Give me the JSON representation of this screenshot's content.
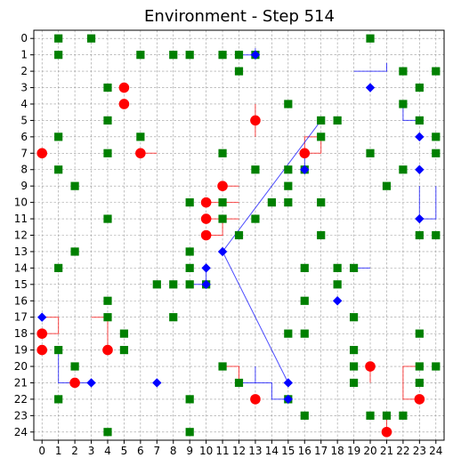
{
  "title": "Environment - Step 514",
  "grid": {
    "cols": 25,
    "rows": 25,
    "x_ticks": [
      "0",
      "1",
      "2",
      "3",
      "4",
      "5",
      "6",
      "7",
      "8",
      "9",
      "10",
      "11",
      "12",
      "13",
      "14",
      "15",
      "16",
      "17",
      "18",
      "19",
      "20",
      "21",
      "22",
      "23",
      "24"
    ],
    "y_ticks": [
      "0",
      "1",
      "2",
      "3",
      "4",
      "5",
      "6",
      "7",
      "8",
      "9",
      "10",
      "11",
      "12",
      "13",
      "14",
      "15",
      "16",
      "17",
      "18",
      "19",
      "20",
      "21",
      "22",
      "23",
      "24"
    ],
    "y_axis_inverted": true,
    "grid_lines": "dashed"
  },
  "colors": {
    "resource": "#008000",
    "agent_red": "#ff0000",
    "agent_blue": "#0000ff",
    "trail_red": "#ff0000",
    "trail_blue": "#0000ff"
  },
  "chart_data": {
    "type": "scatter",
    "title": "Environment - Step 514",
    "xlim": [
      -0.5,
      24.5
    ],
    "ylim": [
      24.5,
      -0.5
    ],
    "series": [
      {
        "kind": "resources",
        "marker": "square",
        "color": "#008000",
        "points": [
          [
            1,
            0
          ],
          [
            3,
            0
          ],
          [
            20,
            0
          ],
          [
            1,
            1
          ],
          [
            6,
            1
          ],
          [
            8,
            1
          ],
          [
            9,
            1
          ],
          [
            11,
            1
          ],
          [
            12,
            1
          ],
          [
            13,
            1
          ],
          [
            12,
            2
          ],
          [
            22,
            2
          ],
          [
            24,
            2
          ],
          [
            4,
            3
          ],
          [
            23,
            3
          ],
          [
            15,
            4
          ],
          [
            22,
            4
          ],
          [
            4,
            5
          ],
          [
            17,
            5
          ],
          [
            18,
            5
          ],
          [
            23,
            5
          ],
          [
            1,
            6
          ],
          [
            6,
            6
          ],
          [
            17,
            6
          ],
          [
            24,
            6
          ],
          [
            4,
            7
          ],
          [
            11,
            7
          ],
          [
            20,
            7
          ],
          [
            24,
            7
          ],
          [
            1,
            8
          ],
          [
            13,
            8
          ],
          [
            15,
            8
          ],
          [
            16,
            8
          ],
          [
            22,
            8
          ],
          [
            2,
            9
          ],
          [
            15,
            9
          ],
          [
            21,
            9
          ],
          [
            9,
            10
          ],
          [
            11,
            10
          ],
          [
            14,
            10
          ],
          [
            15,
            10
          ],
          [
            17,
            10
          ],
          [
            4,
            11
          ],
          [
            11,
            11
          ],
          [
            13,
            11
          ],
          [
            12,
            12
          ],
          [
            17,
            12
          ],
          [
            23,
            12
          ],
          [
            24,
            12
          ],
          [
            2,
            13
          ],
          [
            9,
            13
          ],
          [
            1,
            14
          ],
          [
            9,
            14
          ],
          [
            16,
            14
          ],
          [
            18,
            14
          ],
          [
            19,
            14
          ],
          [
            7,
            15
          ],
          [
            8,
            15
          ],
          [
            9,
            15
          ],
          [
            10,
            15
          ],
          [
            18,
            15
          ],
          [
            4,
            16
          ],
          [
            16,
            16
          ],
          [
            4,
            17
          ],
          [
            8,
            17
          ],
          [
            19,
            17
          ],
          [
            5,
            18
          ],
          [
            15,
            18
          ],
          [
            16,
            18
          ],
          [
            23,
            18
          ],
          [
            1,
            19
          ],
          [
            5,
            19
          ],
          [
            19,
            19
          ],
          [
            2,
            20
          ],
          [
            11,
            20
          ],
          [
            19,
            20
          ],
          [
            23,
            20
          ],
          [
            24,
            20
          ],
          [
            12,
            21
          ],
          [
            19,
            21
          ],
          [
            23,
            21
          ],
          [
            1,
            22
          ],
          [
            9,
            22
          ],
          [
            15,
            22
          ],
          [
            16,
            23
          ],
          [
            20,
            23
          ],
          [
            21,
            23
          ],
          [
            22,
            23
          ],
          [
            4,
            24
          ],
          [
            9,
            24
          ]
        ]
      },
      {
        "kind": "red_agents",
        "marker": "circle",
        "color": "#ff0000",
        "points": [
          [
            5,
            3
          ],
          [
            5,
            4
          ],
          [
            13,
            5
          ],
          [
            0,
            7
          ],
          [
            6,
            7
          ],
          [
            16,
            7
          ],
          [
            11,
            9
          ],
          [
            10,
            10
          ],
          [
            10,
            11
          ],
          [
            10,
            12
          ],
          [
            0,
            18
          ],
          [
            0,
            19
          ],
          [
            4,
            19
          ],
          [
            20,
            20
          ],
          [
            2,
            21
          ],
          [
            13,
            22
          ],
          [
            23,
            22
          ],
          [
            21,
            24
          ]
        ]
      },
      {
        "kind": "blue_agents",
        "marker": "diamond",
        "color": "#0000ff",
        "points": [
          [
            13,
            1
          ],
          [
            20,
            3
          ],
          [
            23,
            6
          ],
          [
            16,
            8
          ],
          [
            23,
            8
          ],
          [
            23,
            11
          ],
          [
            11,
            13
          ],
          [
            10,
            14
          ],
          [
            10,
            15
          ],
          [
            18,
            16
          ],
          [
            0,
            17
          ],
          [
            3,
            21
          ],
          [
            7,
            21
          ],
          [
            15,
            21
          ],
          [
            15,
            22
          ]
        ]
      }
    ],
    "trails": [
      {
        "color": "#ff0000",
        "points": [
          [
            13,
            4
          ],
          [
            13,
            5
          ],
          [
            13,
            6
          ]
        ]
      },
      {
        "color": "#ff0000",
        "points": [
          [
            6,
            7
          ],
          [
            7,
            7
          ]
        ]
      },
      {
        "color": "#ff0000",
        "points": [
          [
            16,
            7
          ],
          [
            17,
            7
          ],
          [
            17,
            6
          ],
          [
            16,
            6
          ],
          [
            16,
            7
          ]
        ]
      },
      {
        "color": "#ff0000",
        "points": [
          [
            11,
            9
          ],
          [
            12,
            9
          ]
        ]
      },
      {
        "color": "#ff0000",
        "points": [
          [
            10,
            10
          ],
          [
            12,
            10
          ]
        ]
      },
      {
        "color": "#ff0000",
        "points": [
          [
            10,
            11
          ],
          [
            12,
            11
          ]
        ]
      },
      {
        "color": "#ff0000",
        "points": [
          [
            10,
            12
          ],
          [
            11,
            12
          ],
          [
            11,
            11
          ]
        ]
      },
      {
        "color": "#ff0000",
        "points": [
          [
            0,
            18
          ],
          [
            1,
            18
          ],
          [
            1,
            17
          ],
          [
            0,
            17
          ]
        ]
      },
      {
        "color": "#ff0000",
        "points": [
          [
            3,
            17
          ],
          [
            4,
            17
          ],
          [
            4,
            19
          ]
        ]
      },
      {
        "color": "#ff0000",
        "points": [
          [
            20,
            20
          ],
          [
            20,
            21
          ]
        ]
      },
      {
        "color": "#ff0000",
        "points": [
          [
            11,
            20
          ],
          [
            12,
            20
          ],
          [
            12,
            21
          ]
        ]
      },
      {
        "color": "#ff0000",
        "points": [
          [
            23,
            22
          ],
          [
            22,
            22
          ],
          [
            22,
            20
          ],
          [
            23,
            20
          ]
        ]
      },
      {
        "color": "#ff0000",
        "points": [
          [
            21,
            24
          ],
          [
            21,
            23
          ]
        ]
      },
      {
        "color": "#0000ff",
        "points": [
          [
            12,
            1
          ],
          [
            13,
            1
          ],
          [
            13,
            0.6
          ]
        ]
      },
      {
        "color": "#0000ff",
        "points": [
          [
            19,
            2
          ],
          [
            21,
            2
          ],
          [
            21,
            1.5
          ]
        ]
      },
      {
        "color": "#0000ff",
        "points": [
          [
            22,
            4
          ],
          [
            22,
            5
          ],
          [
            23,
            5
          ]
        ]
      },
      {
        "color": "#0000ff",
        "points": [
          [
            23,
            9
          ],
          [
            23,
            11
          ],
          [
            24,
            11
          ],
          [
            24,
            9
          ]
        ]
      },
      {
        "color": "#0000ff",
        "points": [
          [
            17,
            5
          ],
          [
            11,
            13
          ]
        ]
      },
      {
        "color": "#0000ff",
        "points": [
          [
            11,
            13
          ],
          [
            15,
            21
          ]
        ]
      },
      {
        "color": "#0000ff",
        "points": [
          [
            16,
            8
          ],
          [
            16,
            7
          ]
        ]
      },
      {
        "color": "#0000ff",
        "points": [
          [
            10,
            14
          ],
          [
            10,
            15
          ],
          [
            9,
            15
          ]
        ]
      },
      {
        "color": "#0000ff",
        "points": [
          [
            19,
            14
          ],
          [
            20,
            14
          ]
        ]
      },
      {
        "color": "#0000ff",
        "points": [
          [
            1,
            19
          ],
          [
            1,
            21
          ],
          [
            3,
            21
          ]
        ]
      },
      {
        "color": "#0000ff",
        "points": [
          [
            12,
            21
          ],
          [
            14,
            21
          ],
          [
            14,
            22
          ],
          [
            15,
            22
          ]
        ]
      },
      {
        "color": "#0000ff",
        "points": [
          [
            13,
            21
          ],
          [
            13,
            20
          ]
        ]
      }
    ]
  }
}
